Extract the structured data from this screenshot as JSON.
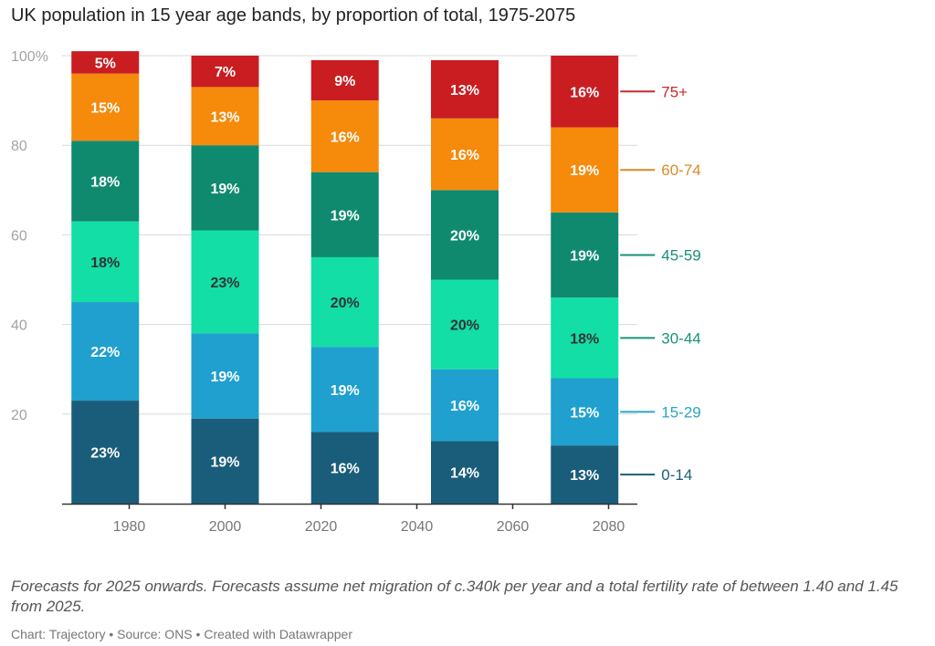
{
  "title": "UK population in 15 year age bands, by proportion of total, 1975-2075",
  "notes": "Forecasts for 2025 onwards. Forecasts assume net migration of c.340k per year and a total fertility rate of between 1.40 and 1.45 from 2025.",
  "footer": {
    "chart_by": "Chart: Trajectory",
    "source": "Source: ONS",
    "tool": "Created with Datawrapper",
    "separator": "•"
  },
  "chart_data": {
    "type": "bar",
    "stacked": true,
    "x": [
      1975,
      2000,
      2025,
      2050,
      2075
    ],
    "xticks": [
      1980,
      2000,
      2020,
      2040,
      2060,
      2080
    ],
    "xlim": [
      1966,
      2086
    ],
    "yticks": [
      0,
      20,
      40,
      60,
      80,
      100
    ],
    "ytick_labels": [
      "",
      "20",
      "40",
      "60",
      "80",
      "100%"
    ],
    "ylim": [
      0,
      100
    ],
    "grid": true,
    "legend_placement": "right",
    "value_label_suffix": "%",
    "series": [
      {
        "name": "0-14",
        "color": "#1a5d7a",
        "label_color": "#1a5d7a",
        "text_color": "#ffffff",
        "values": [
          23,
          19,
          16,
          14,
          13
        ]
      },
      {
        "name": "15-29",
        "color": "#1fa0cf",
        "label_color": "#2aa4c6",
        "text_color": "#ffffff",
        "values": [
          22,
          19,
          19,
          16,
          15
        ]
      },
      {
        "name": "30-44",
        "color": "#12dea6",
        "label_color": "#199476",
        "text_color": "#333333",
        "values": [
          18,
          23,
          20,
          20,
          18
        ]
      },
      {
        "name": "45-59",
        "color": "#0f8a6f",
        "label_color": "#1a8f7a",
        "text_color": "#ffffff",
        "values": [
          18,
          19,
          19,
          20,
          19
        ]
      },
      {
        "name": "60-74",
        "color": "#f58a0b",
        "label_color": "#d88a2a",
        "text_color": "#ffffff",
        "values": [
          15,
          13,
          16,
          16,
          19
        ]
      },
      {
        "name": "75+",
        "color": "#c91d22",
        "label_color": "#c9282c",
        "text_color": "#ffffff",
        "values": [
          5,
          7,
          9,
          13,
          16
        ]
      }
    ]
  }
}
